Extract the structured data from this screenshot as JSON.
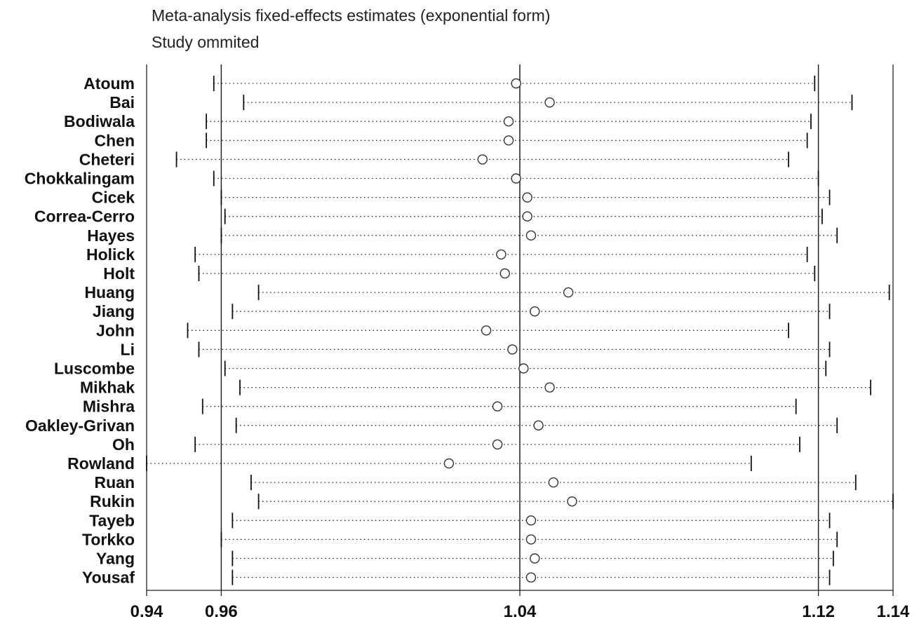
{
  "chart_data": {
    "type": "forest",
    "title": "Meta-analysis fixed-effects estimates (exponential form)",
    "subtitle": "Study ommited",
    "xlim": [
      0.94,
      1.14
    ],
    "ticks": [
      "0.94",
      "0.96",
      "1.04",
      "1.12",
      "1.14"
    ],
    "tick_values": [
      0.94,
      0.96,
      1.04,
      1.12,
      1.14
    ],
    "reference_lines": [
      0.96,
      1.04,
      1.12
    ],
    "studies": [
      {
        "name": "Atoum",
        "estimate": 1.039,
        "lower": 0.958,
        "upper": 1.119
      },
      {
        "name": "Bai",
        "estimate": 1.048,
        "lower": 0.966,
        "upper": 1.129
      },
      {
        "name": "Bodiwala",
        "estimate": 1.037,
        "lower": 0.956,
        "upper": 1.118
      },
      {
        "name": "Chen",
        "estimate": 1.037,
        "lower": 0.956,
        "upper": 1.117
      },
      {
        "name": "Cheteri",
        "estimate": 1.03,
        "lower": 0.948,
        "upper": 1.112
      },
      {
        "name": "Chokkalingam",
        "estimate": 1.039,
        "lower": 0.958,
        "upper": 1.12
      },
      {
        "name": "Cicek",
        "estimate": 1.042,
        "lower": 0.96,
        "upper": 1.123
      },
      {
        "name": "Correa-Cerro",
        "estimate": 1.042,
        "lower": 0.961,
        "upper": 1.121
      },
      {
        "name": "Hayes",
        "estimate": 1.043,
        "lower": 0.96,
        "upper": 1.125
      },
      {
        "name": "Holick",
        "estimate": 1.035,
        "lower": 0.953,
        "upper": 1.117
      },
      {
        "name": "Holt",
        "estimate": 1.036,
        "lower": 0.954,
        "upper": 1.119
      },
      {
        "name": "Huang",
        "estimate": 1.053,
        "lower": 0.97,
        "upper": 1.139
      },
      {
        "name": "Jiang",
        "estimate": 1.044,
        "lower": 0.963,
        "upper": 1.123
      },
      {
        "name": "John",
        "estimate": 1.031,
        "lower": 0.951,
        "upper": 1.112
      },
      {
        "name": "Li",
        "estimate": 1.038,
        "lower": 0.954,
        "upper": 1.123
      },
      {
        "name": "Luscombe",
        "estimate": 1.041,
        "lower": 0.961,
        "upper": 1.122
      },
      {
        "name": "Mikhak",
        "estimate": 1.048,
        "lower": 0.965,
        "upper": 1.134
      },
      {
        "name": "Mishra",
        "estimate": 1.034,
        "lower": 0.955,
        "upper": 1.114
      },
      {
        "name": "Oakley-Grivan",
        "estimate": 1.045,
        "lower": 0.964,
        "upper": 1.125
      },
      {
        "name": "Oh",
        "estimate": 1.034,
        "lower": 0.953,
        "upper": 1.115
      },
      {
        "name": "Rowland",
        "estimate": 1.021,
        "lower": 0.94,
        "upper": 1.102
      },
      {
        "name": "Ruan",
        "estimate": 1.049,
        "lower": 0.968,
        "upper": 1.13
      },
      {
        "name": "Rukin",
        "estimate": 1.054,
        "lower": 0.97,
        "upper": 1.14
      },
      {
        "name": "Tayeb",
        "estimate": 1.043,
        "lower": 0.963,
        "upper": 1.123
      },
      {
        "name": "Torkko",
        "estimate": 1.043,
        "lower": 0.96,
        "upper": 1.125
      },
      {
        "name": "Yang",
        "estimate": 1.044,
        "lower": 0.963,
        "upper": 1.124
      },
      {
        "name": "Yousaf",
        "estimate": 1.043,
        "lower": 0.963,
        "upper": 1.123
      }
    ]
  }
}
